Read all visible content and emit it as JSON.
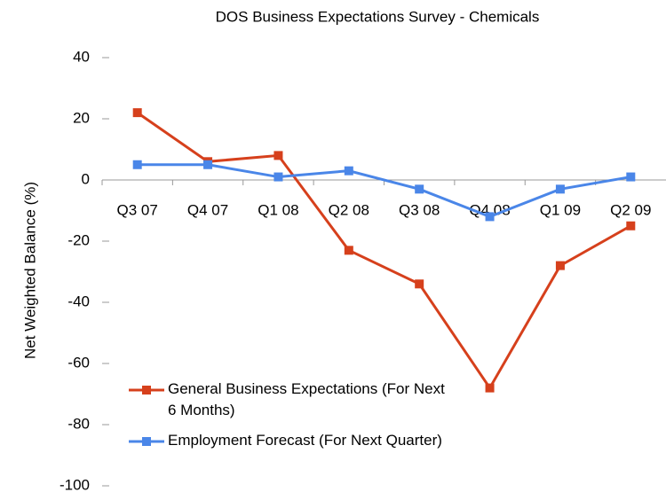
{
  "chart_data": {
    "type": "line",
    "title": "DOS Business Expectations Survey - Chemicals",
    "y_label": "Net Weighted Balance (%)",
    "categories": [
      "Q3 07",
      "Q4 07",
      "Q1 08",
      "Q2 08",
      "Q3 08",
      "Q4 08",
      "Q1 09",
      "Q2 09"
    ],
    "series": [
      {
        "name": "General Business Expectations (For Next 6 Months)",
        "color": "#d6401c",
        "values": [
          22,
          6,
          8,
          -23,
          -34,
          -68,
          -28,
          -15
        ]
      },
      {
        "name": "Employment Forecast (For Next Quarter)",
        "color": "#4a86e8",
        "values": [
          5,
          5,
          1,
          3,
          -3,
          -12,
          -3,
          1
        ]
      }
    ],
    "ylim": [
      -100,
      40
    ],
    "yticks": [
      -100,
      -80,
      -60,
      -40,
      -20,
      0,
      20,
      40
    ],
    "legend": "lower left"
  }
}
